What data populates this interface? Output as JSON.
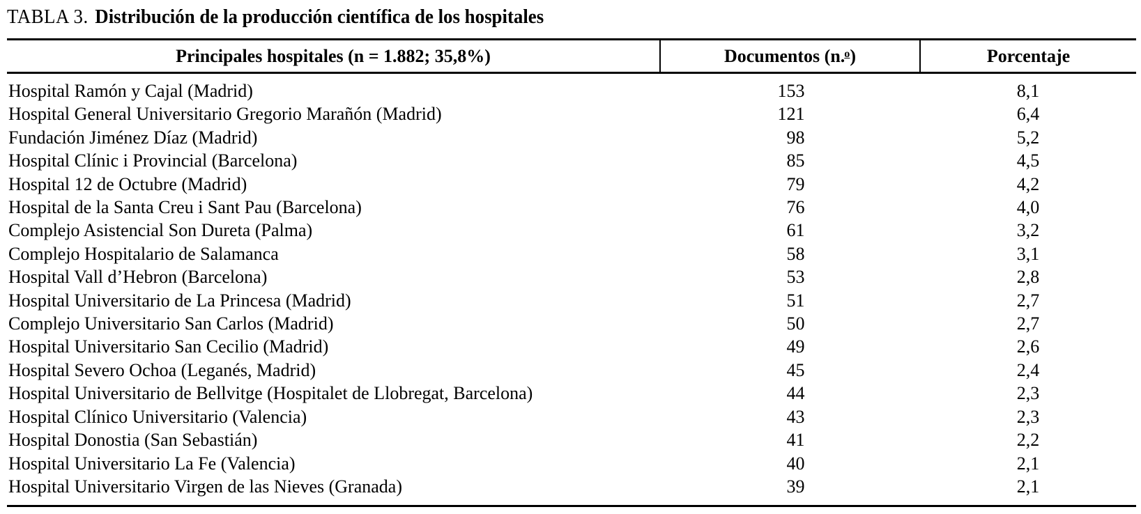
{
  "title": {
    "label": "TABLA 3.",
    "caption": "Distribución de la producción científica de los hospitales"
  },
  "table": {
    "headers": {
      "hospitals": "Principales hospitales (n = 1.882; 35,8%)",
      "documents_prefix": "Documentos (n.",
      "documents_ordinal": "o",
      "documents_suffix": ")",
      "percentage": "Porcentaje"
    },
    "rows": [
      {
        "hospital": "Hospital Ramón y Cajal (Madrid)",
        "documents": "153",
        "percentage": "8,1"
      },
      {
        "hospital": "Hospital General Universitario Gregorio Marañón (Madrid)",
        "documents": "121",
        "percentage": "6,4"
      },
      {
        "hospital": "Fundación Jiménez Díaz (Madrid)",
        "documents": "98",
        "percentage": "5,2"
      },
      {
        "hospital": "Hospital Clínic i Provincial (Barcelona)",
        "documents": "85",
        "percentage": "4,5"
      },
      {
        "hospital": "Hospital 12 de Octubre (Madrid)",
        "documents": "79",
        "percentage": "4,2"
      },
      {
        "hospital": "Hospital de la Santa Creu i Sant Pau (Barcelona)",
        "documents": "76",
        "percentage": "4,0"
      },
      {
        "hospital": "Complejo Asistencial Son Dureta (Palma)",
        "documents": "61",
        "percentage": "3,2"
      },
      {
        "hospital": "Complejo Hospitalario de Salamanca",
        "documents": "58",
        "percentage": "3,1"
      },
      {
        "hospital": "Hospital Vall d’Hebron (Barcelona)",
        "documents": "53",
        "percentage": "2,8"
      },
      {
        "hospital": "Hospital Universitario de La Princesa (Madrid)",
        "documents": "51",
        "percentage": "2,7"
      },
      {
        "hospital": "Complejo Universitario San Carlos (Madrid)",
        "documents": "50",
        "percentage": "2,7"
      },
      {
        "hospital": "Hospital Universitario San Cecilio (Madrid)",
        "documents": "49",
        "percentage": "2,6"
      },
      {
        "hospital": "Hospital Severo Ochoa (Leganés, Madrid)",
        "documents": "45",
        "percentage": "2,4"
      },
      {
        "hospital": "Hospital Universitario de Bellvitge (Hospitalet de Llobregat, Barcelona)",
        "documents": "44",
        "percentage": "2,3"
      },
      {
        "hospital": "Hospital Clínico Universitario (Valencia)",
        "documents": "43",
        "percentage": "2,3"
      },
      {
        "hospital": "Hospital Donostia (San Sebastián)",
        "documents": "41",
        "percentage": "2,2"
      },
      {
        "hospital": "Hospital Universitario La Fe (Valencia)",
        "documents": "40",
        "percentage": "2,1"
      },
      {
        "hospital": "Hospital Universitario Virgen de las Nieves (Granada)",
        "documents": "39",
        "percentage": "2,1"
      }
    ]
  }
}
